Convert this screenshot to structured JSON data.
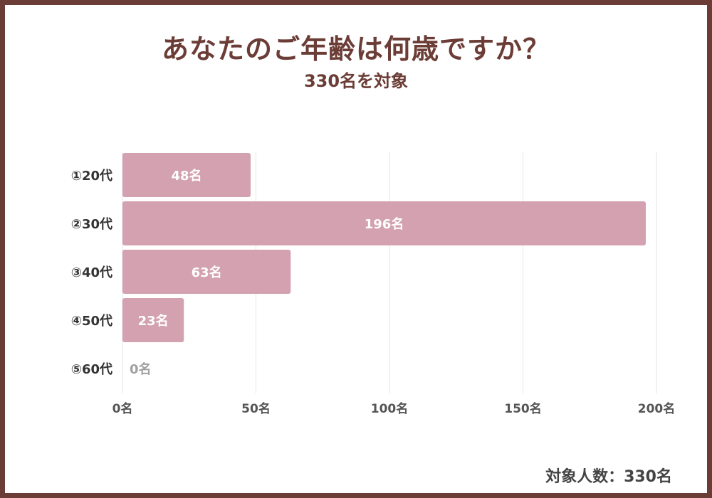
{
  "header": {
    "title": "あなたのご年齢は何歳ですか？",
    "subtitle": "330名を対象"
  },
  "footer": {
    "note": "対象人数：330名"
  },
  "colors": {
    "frame": "#6b3d36",
    "title": "#6b3d36",
    "bar": "#d3a1b0",
    "bar_label": "#ffffff",
    "zero_label": "#a0a0a0",
    "grid": "#e6e6e6",
    "axis_text": "#555555",
    "category_text": "#333333"
  },
  "chart_data": {
    "type": "bar",
    "orientation": "horizontal",
    "categories": [
      "①20代",
      "②30代",
      "③40代",
      "④50代",
      "⑤60代"
    ],
    "values": [
      48,
      196,
      63,
      23,
      0
    ],
    "value_labels": [
      "48名",
      "196名",
      "63名",
      "23名",
      "0名"
    ],
    "xlim": [
      0,
      200
    ],
    "x_ticks": [
      0,
      50,
      100,
      150,
      200
    ],
    "x_tick_labels": [
      "0名",
      "50名",
      "100名",
      "150名",
      "200名"
    ],
    "grid": true,
    "legend": "none"
  }
}
